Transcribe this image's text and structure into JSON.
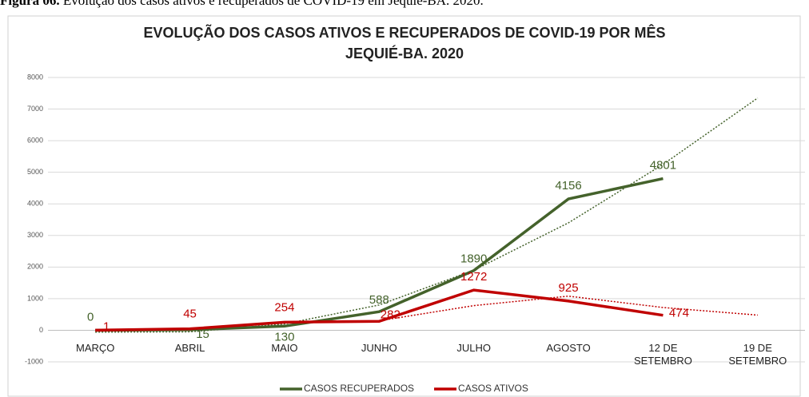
{
  "caption": {
    "label": "Figura 06.",
    "text": "Evolução dos casos ativos e recuperados de COVID-19 em Jequié-BA. 2020."
  },
  "chart_data": {
    "type": "line",
    "title": "EVOLUÇÃO DOS CASOS ATIVOS E RECUPERADOS DE COVID-19 POR MÊS",
    "subtitle": "JEQUIÉ-BA. 2020",
    "categories": [
      "MARÇO",
      "ABRIL",
      "MAIO",
      "JUNHO",
      "JULHO",
      "AGOSTO",
      "12 DE SETEMBRO",
      "19 DE SETEMBRO"
    ],
    "series": [
      {
        "name": "CASOS RECUPERADOS",
        "color": "#44622b",
        "values": [
          0,
          15,
          130,
          588,
          1890,
          4156,
          4801,
          null
        ]
      },
      {
        "name": "CASOS ATIVOS",
        "color": "#c00000",
        "values": [
          1,
          45,
          254,
          282,
          1272,
          925,
          474,
          null
        ]
      }
    ],
    "trendlines": [
      {
        "color": "#44622b",
        "values": [
          -60,
          -50,
          200,
          800,
          1900,
          3400,
          5250,
          7350
        ]
      },
      {
        "color": "#c00000",
        "values": [
          null,
          null,
          null,
          300,
          780,
          1080,
          720,
          480
        ]
      }
    ],
    "ylim": [
      -1000,
      8000
    ],
    "yticks": [
      -1000,
      0,
      1000,
      2000,
      3000,
      4000,
      5000,
      6000,
      7000,
      8000
    ],
    "grid": true,
    "legend": "bottom"
  }
}
